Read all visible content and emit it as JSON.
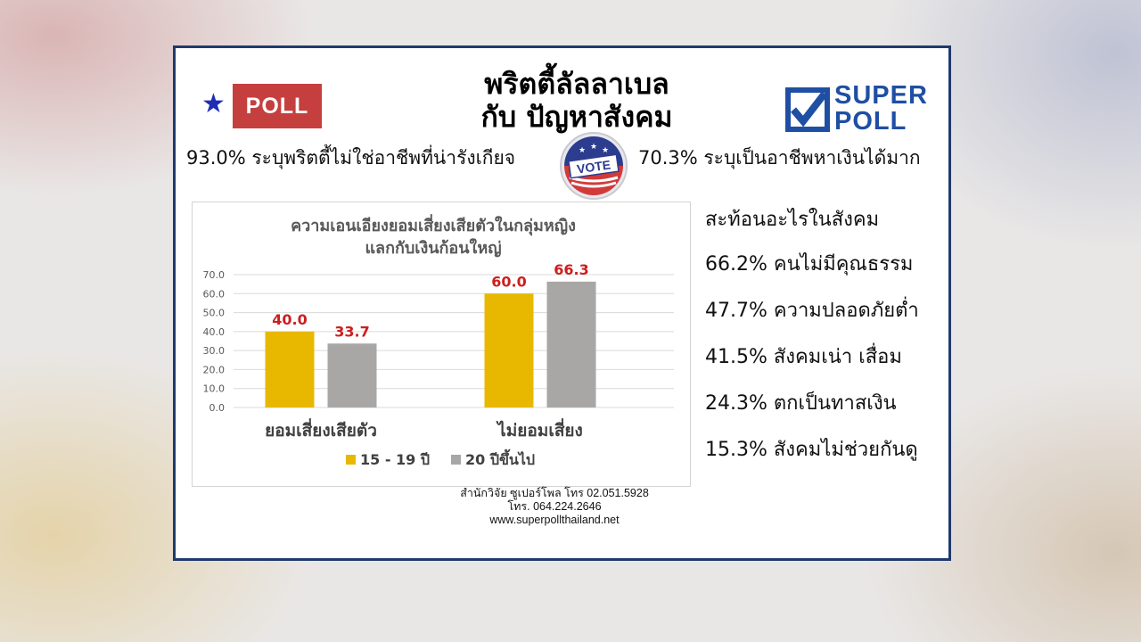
{
  "header": {
    "badge_label": "POLL",
    "title_line1": "พริตตี้ลัลลาเบล",
    "title_line2": "กับ ปัญหาสังคม",
    "logo_top": "SUPER",
    "logo_bottom": "POLL",
    "vote_label": "VOTE"
  },
  "stats": {
    "left": "93.0% ระบุพริตตี้ไม่ใช่อาชีพที่น่ารังเกียจ",
    "right": "70.3% ระบุเป็นอาชีพหาเงินได้มาก"
  },
  "reflection": {
    "heading": "สะท้อนอะไรในสังคม",
    "items": [
      "66.2% คนไม่มีคุณธรรม",
      "47.7% ความปลอดภัยต่ำ",
      "41.5% สังคมเน่า เสื่อม",
      "24.3% ตกเป็นทาสเงิน",
      "15.3% สังคมไม่ช่วยกันดู"
    ]
  },
  "credits": {
    "line1": "สำนักวิจัย ซูเปอร์โพล โทร 02.051.5928",
    "line2": "โทร. 064.224.2646",
    "line3": "www.superpollthailand.net"
  },
  "colors": {
    "series1": "#e8b800",
    "series2": "#a9a6a6",
    "label": "#cc1f1f",
    "badge": "#c63f3f",
    "frame": "#1f3a6e",
    "logo": "#1f4fa3"
  },
  "chart_data": {
    "type": "bar",
    "title_line1": "ความเอนเอียงยอมเสี่ยงเสียตัวในกลุ่มหญิง",
    "title_line2": "แลกกับเงินก้อนใหญ่",
    "categories": [
      "ยอมเสี่ยงเสียตัว",
      "ไม่ยอมเสี่ยง"
    ],
    "series": [
      {
        "name": "15 - 19 ปี",
        "values": [
          40.0,
          60.0
        ]
      },
      {
        "name": "20 ปีขึ้นไป",
        "values": [
          33.7,
          66.3
        ]
      }
    ],
    "yticks": [
      "0.0",
      "10.0",
      "20.0",
      "30.0",
      "40.0",
      "50.0",
      "60.0",
      "70.0"
    ],
    "ylim": [
      0,
      70
    ],
    "grid": true,
    "legend": "bottom"
  }
}
